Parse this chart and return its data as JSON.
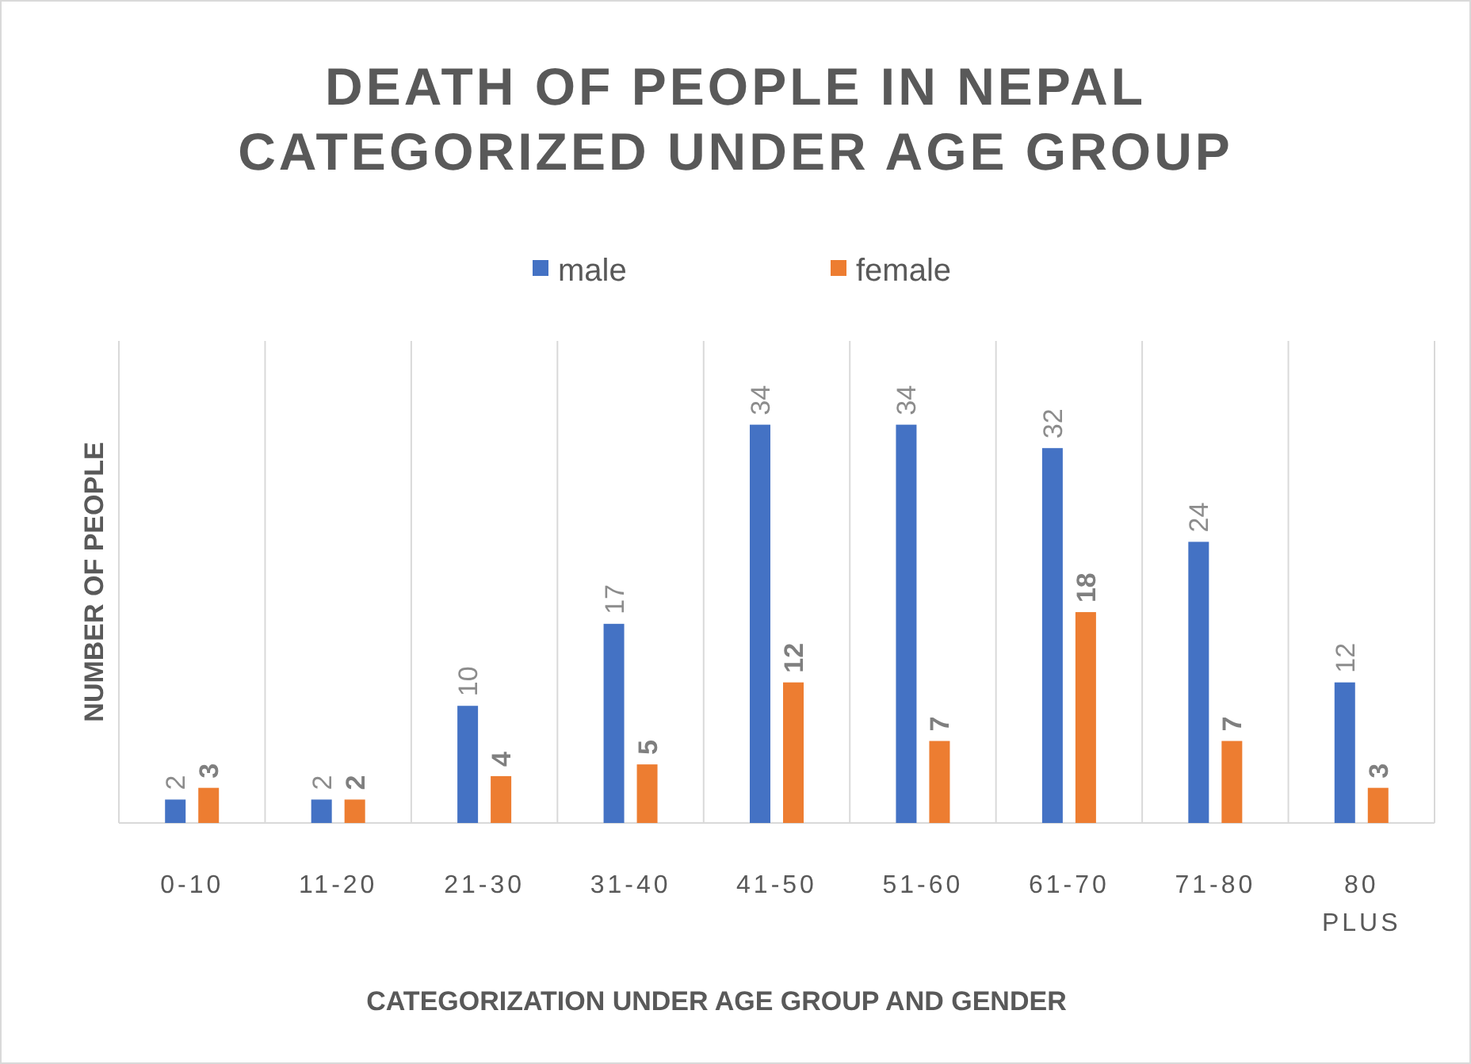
{
  "chart_data": {
    "type": "bar",
    "title": "DEATH OF PEOPLE IN NEPAL CATEGORIZED UNDER AGE GROUP",
    "xlabel": "CATEGORIZATION UNDER AGE GROUP AND GENDER",
    "ylabel": "NUMBER OF PEOPLE",
    "categories": [
      "0-10",
      "11-20",
      "21-30",
      "31-40",
      "41-50",
      "51-60",
      "61-70",
      "71-80",
      "80 PLUS"
    ],
    "series": [
      {
        "name": "male",
        "color": "#4472c4",
        "values": [
          2,
          2,
          10,
          17,
          34,
          34,
          32,
          24,
          12
        ]
      },
      {
        "name": "female",
        "color": "#ed7d31",
        "values": [
          3,
          2,
          4,
          5,
          12,
          7,
          18,
          7,
          3
        ]
      }
    ],
    "data_labels": true,
    "grid": "x",
    "legend": "top"
  }
}
